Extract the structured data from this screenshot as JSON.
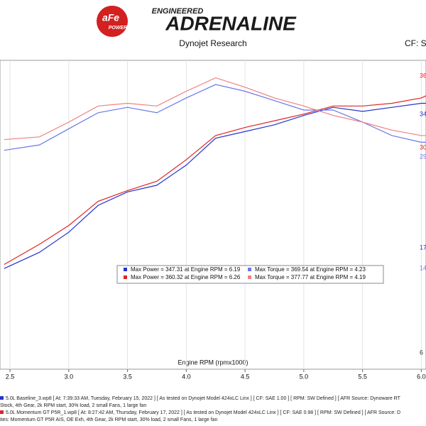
{
  "header": {
    "brand_small": "aFe",
    "brand_sub": "POWER",
    "tagline_top": "ENGINEERED",
    "tagline_main": "ADRENALINE",
    "source": "Dynojet Research",
    "cf": "CF: SA"
  },
  "chart_data": {
    "type": "line",
    "x_label": "Engine RPM (rpmx1000)",
    "x": [
      2.45,
      2.75,
      3.0,
      3.25,
      3.5,
      3.75,
      4.0,
      4.25,
      4.5,
      4.75,
      5.0,
      5.25,
      5.5,
      5.75,
      6.0,
      6.05
    ],
    "series": [
      {
        "name": "Max Power = 347.31 at Engine RPM = 6.19",
        "color": "#2233cc",
        "values": [
          225,
          237,
          252,
          272,
          282,
          287,
          302,
          322,
          327,
          332,
          339,
          345,
          342,
          345,
          348,
          348
        ]
      },
      {
        "name": "Max Power = 360.32 at Engine RPM = 6.26",
        "color": "#e02424",
        "values": [
          228,
          243,
          257,
          275,
          283,
          290,
          306,
          324,
          330,
          335,
          340,
          346,
          346,
          348,
          352,
          354
        ]
      },
      {
        "name": "Max Torque = 369.54 at Engine RPM = 4.23",
        "color": "#6b78e6",
        "values": [
          313,
          317,
          329,
          341,
          345,
          341,
          352,
          362,
          357,
          350,
          343,
          343,
          334,
          324,
          319,
          319
        ]
      },
      {
        "name": "Max Torque = 377.77 at Engine RPM = 4.19",
        "color": "#f08080",
        "values": [
          321,
          323,
          334,
          346,
          348,
          346,
          357,
          367,
          360,
          352,
          346,
          339,
          334,
          328,
          324,
          324
        ]
      }
    ],
    "xlim": [
      2.415,
      6.04
    ],
    "ylim": [
      150,
      380
    ],
    "xticks": [
      {
        "value": 2.5,
        "label": "2.5"
      },
      {
        "value": 3.0,
        "label": "3.0"
      },
      {
        "value": 3.5,
        "label": "3.5"
      },
      {
        "value": 4.0,
        "label": "4.0"
      },
      {
        "value": 4.5,
        "label": "4.5"
      },
      {
        "value": 5.0,
        "label": "5.0"
      },
      {
        "value": 5.5,
        "label": "5.5"
      },
      {
        "value": 6.0,
        "label": "6.0"
      }
    ],
    "grid": true,
    "right_labels": [
      {
        "text": "36",
        "color": "#e02424"
      },
      {
        "text": "34",
        "color": "#2233cc"
      },
      {
        "text": "30",
        "color": "#e02424"
      },
      {
        "text": "29",
        "color": "#6b78e6"
      },
      {
        "text": "17",
        "color": "#2233cc"
      },
      {
        "text": "14",
        "color": "#6b78e6"
      },
      {
        "text": "6",
        "color": "#333333"
      }
    ]
  },
  "footer": [
    {
      "color": "#2233cc",
      "text": "5.0L Baseline_3.wp8 [ At: 7:39:33 AM, Tuesday, February 15, 2022 ] [ As tested on Dynojet Model 424xLC Linx ] [ CF: SAE 1.00 ] [ RPM: SW Defined ] [ AFR Source: Dynoware RT"
    },
    {
      "color": null,
      "text": "Stock, 4th Gear, 2k RPM start, 30% load, 2 small Fans, 1 large fan"
    },
    {
      "color": "#e02424",
      "text": "5.0L Momentum GT P5R_1.wp8 [ At: 8:27:42 AM, Thursday, February 17, 2022 ] [ As tested on Dynojet Model 424xLC Linx ] [ CF: SAE 0.98 ] [ RPM: SW Defined ] [ AFR Source: D"
    },
    {
      "color": null,
      "text": "ites: Momentum GT P5R AIS, OE Exh, 4th Gear, 2k RPM start, 30% load, 2 small Fans, 1 large fan"
    }
  ]
}
